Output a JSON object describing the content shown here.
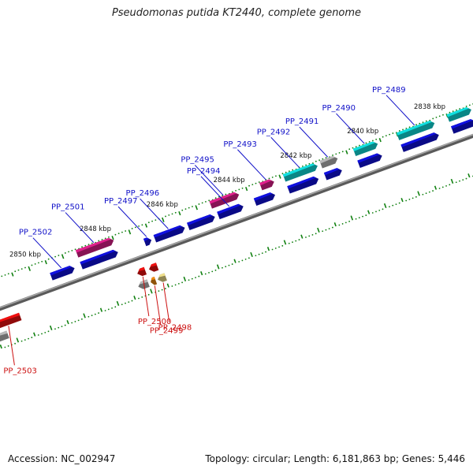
{
  "title": "Pseudomonas putida KT2440, complete genome",
  "accession": "Accession: NC_002947",
  "summary": "Topology: circular; Length: 6,181,863 bp; Genes: 5,446",
  "colors": {
    "backbone": "#808080",
    "protein": "#1010e0",
    "pink": "#e0208c",
    "cyan": "#10e0e0",
    "gray": "#b8b8b8",
    "red": "#f01010",
    "orange": "#f08c10",
    "pale": "#f0e08c",
    "tick": "#108010",
    "label_forward": "#1010c8",
    "label_reverse": "#cc1010"
  },
  "kbp_labels": [
    {
      "text": "2850 kbp",
      "pos": 2850.1
    },
    {
      "text": "2848 kbp",
      "pos": 2848.0
    },
    {
      "text": "2846 kbp",
      "pos": 2846.0
    },
    {
      "text": "2844 kbp",
      "pos": 2844.0
    },
    {
      "text": "2842 kbp",
      "pos": 2842.0
    },
    {
      "text": "2840 kbp",
      "pos": 2840.0
    },
    {
      "text": "2838 kbp",
      "pos": 2838.0
    }
  ],
  "genes_forward": [
    {
      "label": "PP_2502",
      "s": 2849.5,
      "e": 2848.8,
      "color": "protein",
      "row": 1
    },
    {
      "label": "PP_2501",
      "s": 2848.6,
      "e": 2847.5,
      "color": "pink",
      "row": 2
    },
    {
      "label": "",
      "s": 2848.6,
      "e": 2847.5,
      "color": "protein",
      "row": 1
    },
    {
      "label": "PP_2497",
      "s": 2846.7,
      "e": 2846.5,
      "color": "protein",
      "row": 1
    },
    {
      "label": "PP_2496",
      "s": 2846.4,
      "e": 2845.5,
      "color": "protein",
      "row": 1
    },
    {
      "label": "PP_2495",
      "s": 2844.6,
      "e": 2843.75,
      "color": "pink",
      "row": 2
    },
    {
      "label": "",
      "s": 2845.4,
      "e": 2844.6,
      "color": "protein",
      "row": 1
    },
    {
      "label": "PP_2494",
      "s": 2844.5,
      "e": 2843.75,
      "color": "protein",
      "row": 1
    },
    {
      "label": "PP_2493",
      "s": 2843.1,
      "e": 2842.7,
      "color": "pink",
      "row": 2
    },
    {
      "label": "",
      "s": 2843.4,
      "e": 2842.8,
      "color": "protein",
      "row": 1
    },
    {
      "label": "PP_2492",
      "s": 2842.4,
      "e": 2841.4,
      "color": "cyan",
      "row": 2
    },
    {
      "label": "",
      "s": 2842.4,
      "e": 2841.5,
      "color": "protein",
      "row": 1
    },
    {
      "label": "PP_2491",
      "s": 2841.3,
      "e": 2840.8,
      "color": "gray",
      "row": 2
    },
    {
      "label": "",
      "s": 2841.3,
      "e": 2840.8,
      "color": "protein",
      "row": 1
    },
    {
      "label": "PP_2490",
      "s": 2840.3,
      "e": 2839.6,
      "color": "cyan",
      "row": 2
    },
    {
      "label": "",
      "s": 2840.3,
      "e": 2839.6,
      "color": "protein",
      "row": 1
    },
    {
      "label": "PP_2489",
      "s": 2839.0,
      "e": 2837.9,
      "color": "cyan",
      "row": 2
    },
    {
      "label": "",
      "s": 2839.0,
      "e": 2837.9,
      "color": "protein",
      "row": 1
    },
    {
      "label": "",
      "s": 2837.5,
      "e": 2836.8,
      "color": "cyan",
      "row": 2
    },
    {
      "label": "",
      "s": 2837.5,
      "e": 2836.8,
      "color": "protein",
      "row": 1
    }
  ],
  "genes_reverse": [
    {
      "label": "PP_2503",
      "s": 2851.5,
      "e": 2850.7,
      "color": "red",
      "row": 1
    },
    {
      "label": "",
      "s": 2851.6,
      "e": 2851.2,
      "color": "gray",
      "row": 2
    },
    {
      "label": "PP_2500",
      "s": 2847.2,
      "e": 2846.96,
      "color": "red",
      "row": 1
    },
    {
      "label": "",
      "s": 2847.3,
      "e": 2847.0,
      "color": "gray",
      "row": 2
    },
    {
      "label": "PP_2499",
      "s": 2846.93,
      "e": 2846.78,
      "color": "orange",
      "row": 2
    },
    {
      "label": "",
      "s": 2846.85,
      "e": 2846.6,
      "color": "red",
      "row": 1
    },
    {
      "label": "PP_2498",
      "s": 2846.72,
      "e": 2846.48,
      "color": "pale",
      "row": 2
    }
  ]
}
